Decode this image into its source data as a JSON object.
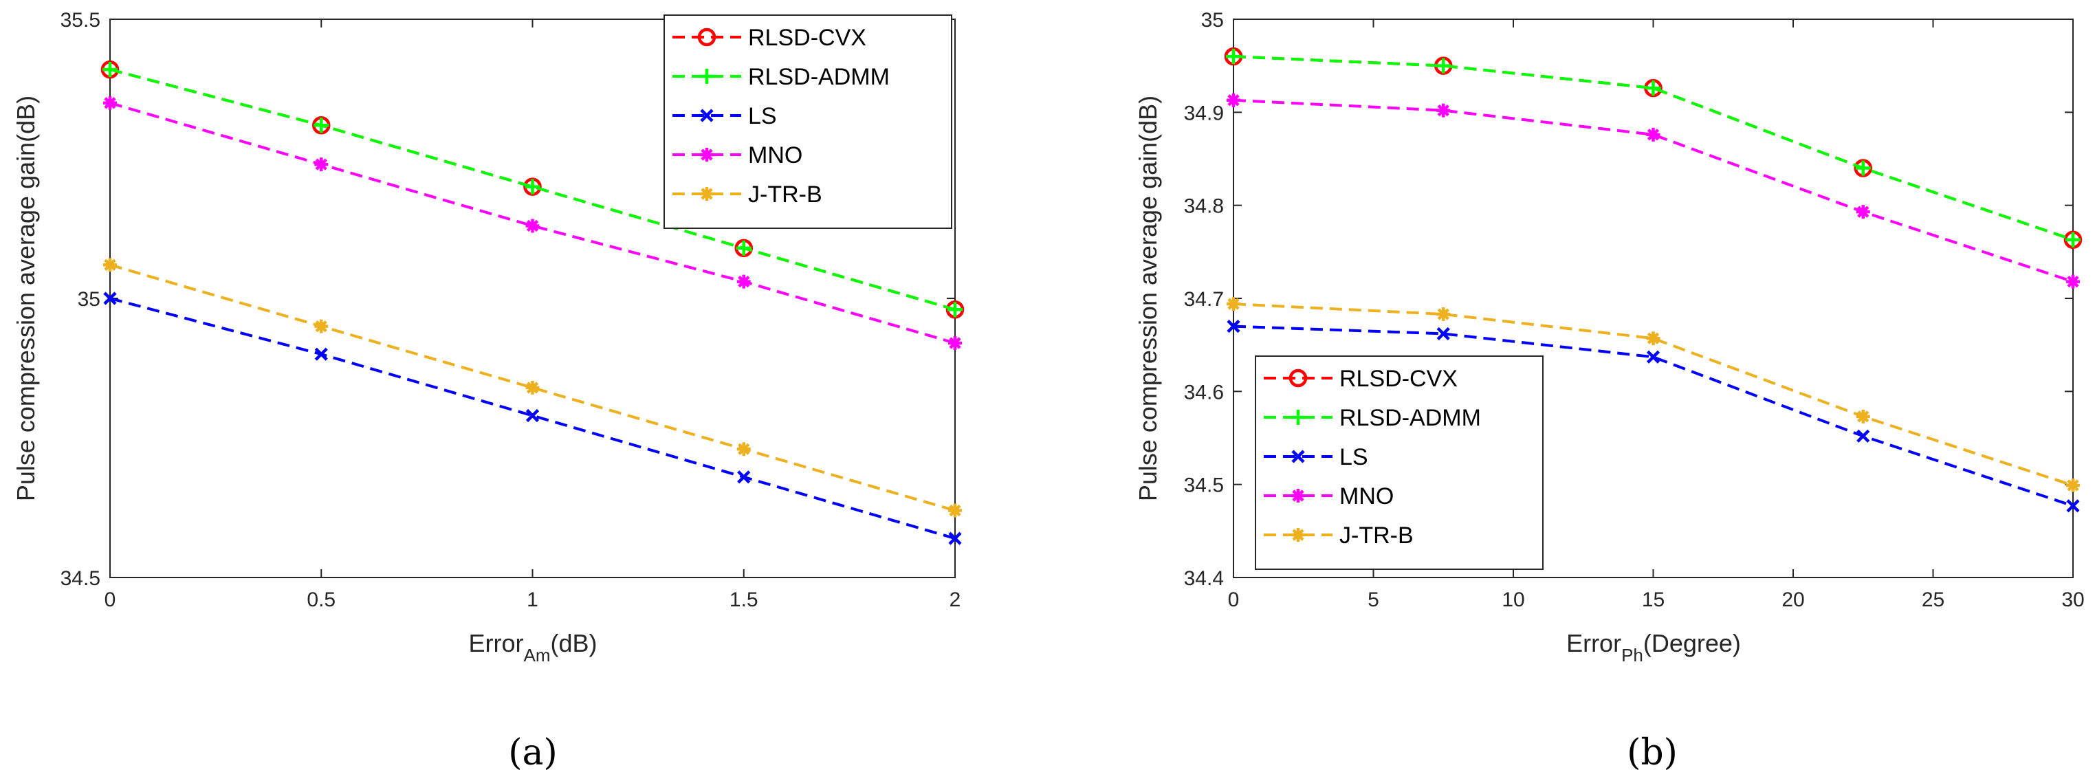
{
  "colors": {
    "rlsd_cvx": "#ff0000",
    "rlsd_admm": "#00ff00",
    "ls": "#0000ff",
    "mno": "#ff00ff",
    "jtrb": "#edb120",
    "axis": "#262626"
  },
  "chart_data": [
    {
      "type": "line",
      "panel": "a",
      "caption": "(a)",
      "ylabel": "Pulse compression average gain(dB)",
      "xlabel_main": "Error",
      "xlabel_sub": "Am",
      "xlabel_unit": "(dB)",
      "x": [
        0,
        0.5,
        1,
        1.5,
        2
      ],
      "xticks": [
        "0",
        "0.5",
        "1",
        "1.5",
        "2"
      ],
      "yticks": [
        "34.5",
        "35",
        "35.5"
      ],
      "xlim": [
        0,
        2
      ],
      "ylim": [
        34.5,
        35.5
      ],
      "legend_position": "top-right",
      "series": [
        {
          "name": "RLSD-CVX",
          "marker": "circle",
          "values": [
            35.41,
            35.31,
            35.2,
            35.09,
            34.98
          ]
        },
        {
          "name": "RLSD-ADMM",
          "marker": "plus",
          "values": [
            35.41,
            35.31,
            35.2,
            35.09,
            34.98
          ]
        },
        {
          "name": "LS",
          "marker": "x",
          "values": [
            35.0,
            34.9,
            34.79,
            34.68,
            34.57
          ]
        },
        {
          "name": "MNO",
          "marker": "star",
          "values": [
            35.35,
            35.24,
            35.13,
            35.03,
            34.92
          ]
        },
        {
          "name": "J-TR-B",
          "marker": "star",
          "values": [
            35.06,
            34.95,
            34.84,
            34.73,
            34.62
          ]
        }
      ]
    },
    {
      "type": "line",
      "panel": "b",
      "caption": "(b)",
      "ylabel": "Pulse compression average gain(dB)",
      "xlabel_main": "Error",
      "xlabel_sub": "Ph",
      "xlabel_unit": "(Degree)",
      "x": [
        0,
        7.5,
        15,
        22.5,
        30
      ],
      "xticks": [
        "0",
        "5",
        "10",
        "15",
        "20",
        "25",
        "30"
      ],
      "yticks": [
        "34.4",
        "34.5",
        "34.6",
        "34.7",
        "34.8",
        "34.9",
        "35"
      ],
      "xlim": [
        0,
        30
      ],
      "ylim": [
        34.4,
        35.0
      ],
      "legend_position": "bottom-left",
      "series": [
        {
          "name": "RLSD-CVX",
          "marker": "circle",
          "values": [
            34.96,
            34.95,
            34.926,
            34.84,
            34.763
          ]
        },
        {
          "name": "RLSD-ADMM",
          "marker": "plus",
          "values": [
            34.96,
            34.95,
            34.926,
            34.84,
            34.763
          ]
        },
        {
          "name": "LS",
          "marker": "x",
          "values": [
            34.67,
            34.662,
            34.637,
            34.552,
            34.477
          ]
        },
        {
          "name": "MNO",
          "marker": "star",
          "values": [
            34.913,
            34.902,
            34.876,
            34.793,
            34.718
          ]
        },
        {
          "name": "J-TR-B",
          "marker": "star",
          "values": [
            34.694,
            34.683,
            34.657,
            34.573,
            34.499
          ]
        }
      ]
    }
  ]
}
